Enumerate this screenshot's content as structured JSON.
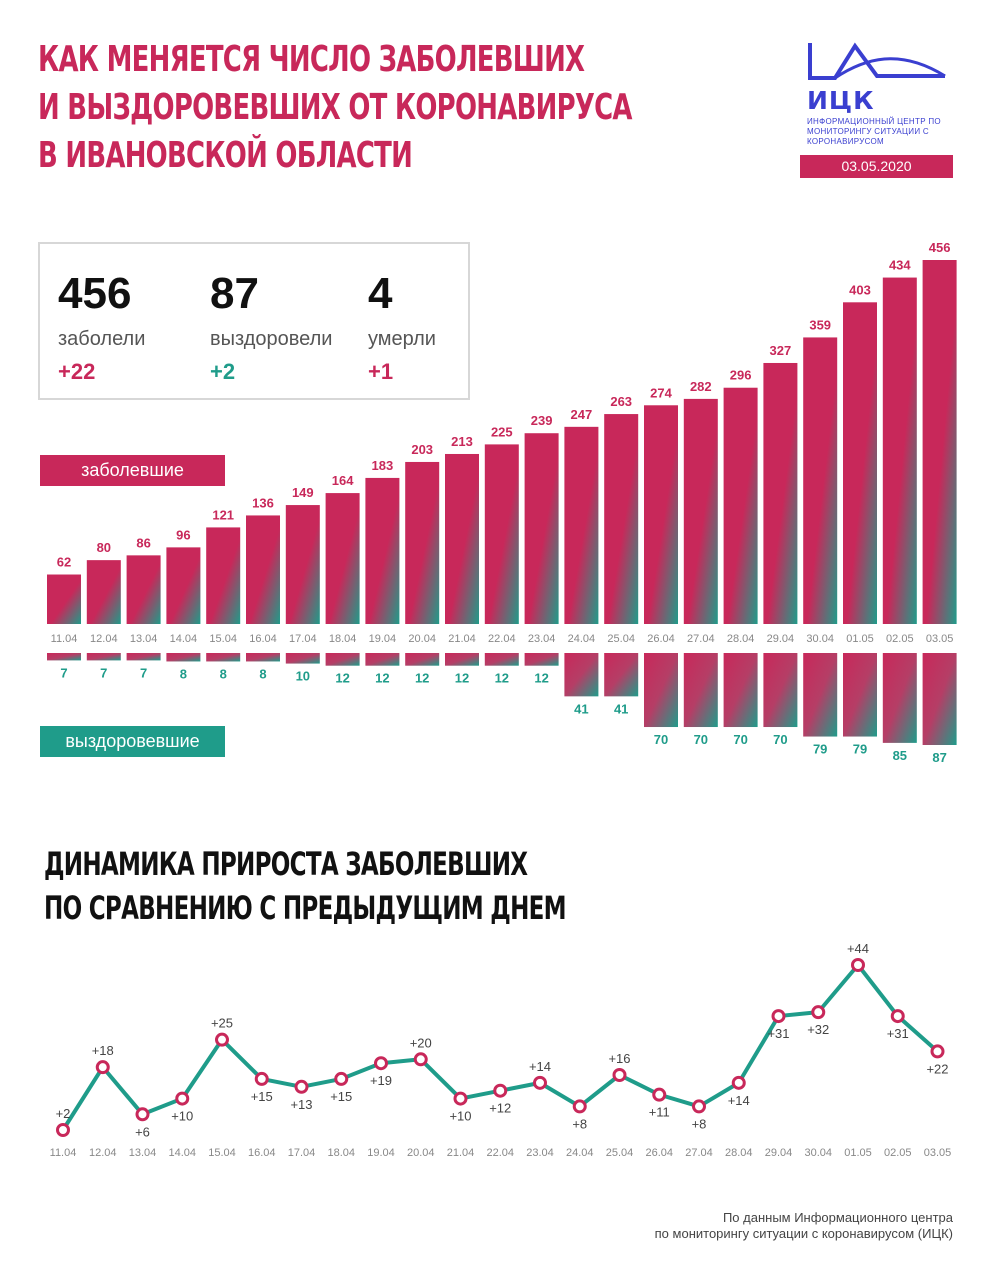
{
  "header": {
    "title_lines": [
      "КАК МЕНЯЕТСЯ ЧИСЛО ЗАБОЛЕВШИХ",
      "И ВЫЗДОРОВЕВШИХ ОТ КОРОНАВИРУСА",
      "В ИВАНОВСКОЙ ОБЛАСТИ"
    ],
    "logo_text": "ИЦК",
    "logo_sub": "ИНФОРМАЦИОННЫЙ ЦЕНТР ПО МОНИТОРИНГУ СИТУАЦИИ С КОРОНАВИРУСОМ",
    "date": "03.05.2020"
  },
  "stats": [
    {
      "value": "456",
      "label": "заболели",
      "delta": "+22"
    },
    {
      "value": "87",
      "label": "выздоровели",
      "delta": "+2"
    },
    {
      "value": "4",
      "label": "умерли",
      "delta": "+1"
    }
  ],
  "tags": {
    "infected": "заболевшие",
    "recovered": "выздоровевшие"
  },
  "subtitle_lines": [
    "ДИНАМИКА ПРИРОСТА ЗАБОЛЕВШИХ",
    "ПО СРАВНЕНИЮ С ПРЕДЫДУЩИМ ДНЕМ"
  ],
  "source_lines": [
    "По данным Информационного центра",
    "по мониторингу ситуации с коронавирусом (ИЦК)"
  ],
  "colors": {
    "pink": "#c8285a",
    "teal": "#1f9c8a",
    "grey": "#888888"
  },
  "chart_data": [
    {
      "type": "bar",
      "categories": [
        "11.04",
        "12.04",
        "13.04",
        "14.04",
        "15.04",
        "16.04",
        "17.04",
        "18.04",
        "19.04",
        "20.04",
        "21.04",
        "22.04",
        "23.04",
        "24.04",
        "25.04",
        "26.04",
        "27.04",
        "28.04",
        "29.04",
        "30.04",
        "01.05",
        "02.05",
        "03.05"
      ],
      "series": [
        {
          "name": "заболевшие",
          "values": [
            62,
            80,
            86,
            96,
            121,
            136,
            149,
            164,
            183,
            203,
            213,
            225,
            239,
            247,
            263,
            274,
            282,
            296,
            327,
            359,
            403,
            434,
            456
          ]
        },
        {
          "name": "выздоровевшие",
          "values": [
            7,
            7,
            7,
            8,
            8,
            8,
            10,
            12,
            12,
            12,
            12,
            12,
            12,
            41,
            41,
            70,
            70,
            70,
            70,
            79,
            79,
            85,
            87
          ]
        }
      ]
    },
    {
      "type": "line",
      "title": "ДИНАМИКА ПРИРОСТА ЗАБОЛЕВШИХ ПО СРАВНЕНИЮ С ПРЕДЫДУЩИМ ДНЕМ",
      "categories": [
        "11.04",
        "12.04",
        "13.04",
        "14.04",
        "15.04",
        "16.04",
        "17.04",
        "18.04",
        "19.04",
        "20.04",
        "21.04",
        "22.04",
        "23.04",
        "24.04",
        "25.04",
        "26.04",
        "27.04",
        "28.04",
        "29.04",
        "30.04",
        "01.05",
        "02.05",
        "03.05"
      ],
      "values": [
        2,
        18,
        6,
        10,
        25,
        15,
        13,
        15,
        19,
        20,
        10,
        12,
        14,
        8,
        16,
        11,
        8,
        14,
        31,
        32,
        44,
        31,
        22
      ],
      "labels": [
        "+2",
        "+18",
        "+6",
        "+10",
        "+25",
        "+15",
        "+13",
        "+15",
        "+19",
        "+20",
        "+10",
        "+12",
        "+14",
        "+8",
        "+16",
        "+11",
        "+8",
        "+14",
        "+31",
        "+32",
        "+44",
        "+31",
        "+22"
      ]
    }
  ]
}
